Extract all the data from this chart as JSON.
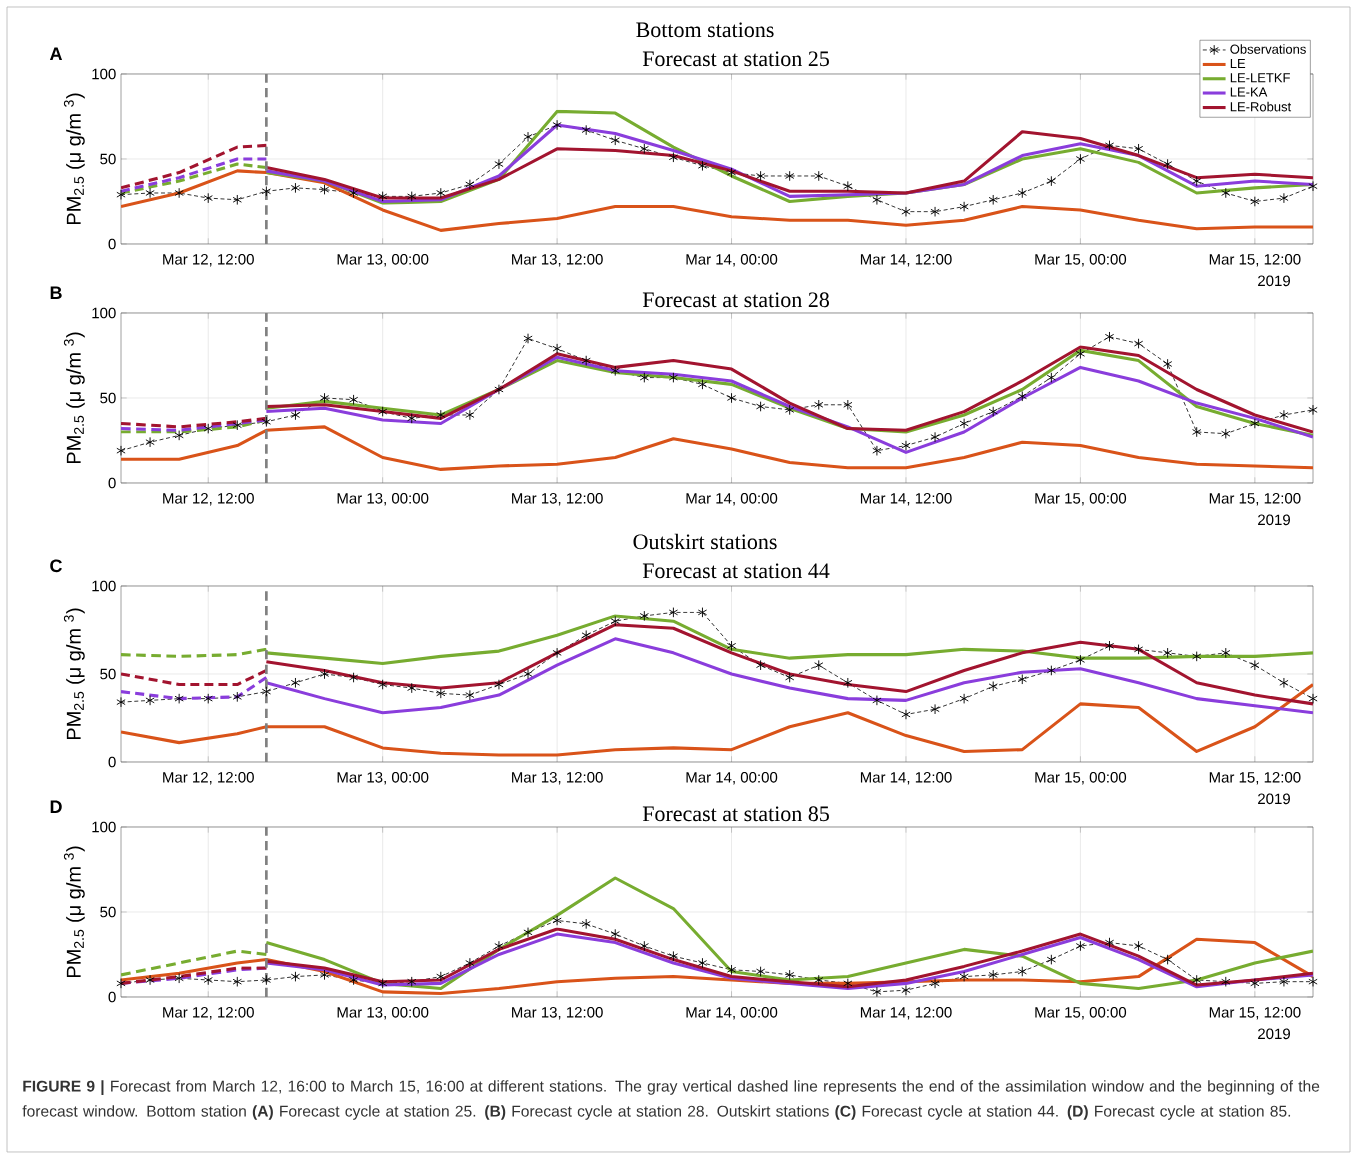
{
  "chart_data": [
    {
      "type": "line",
      "title": "Bottom stations",
      "subtitle": "Forecast at station 25",
      "ylabel": "PM$_{2.5}$  (μ g/m $^{3}$)",
      "x": [
        "2019-03-12T06:00",
        "2019-03-12T08:00",
        "2019-03-12T10:00",
        "2019-03-12T12:00",
        "2019-03-12T14:00",
        "2019-03-12T16:00",
        "2019-03-12T18:00",
        "2019-03-12T20:00",
        "2019-03-12T22:00",
        "2019-03-13T00:00",
        "2019-03-13T02:00",
        "2019-03-13T04:00",
        "2019-03-13T06:00",
        "2019-03-13T08:00",
        "2019-03-13T10:00",
        "2019-03-13T12:00",
        "2019-03-13T14:00",
        "2019-03-13T16:00",
        "2019-03-13T18:00",
        "2019-03-13T20:00",
        "2019-03-13T22:00",
        "2019-03-14T00:00",
        "2019-03-14T02:00",
        "2019-03-14T04:00",
        "2019-03-14T06:00",
        "2019-03-14T08:00",
        "2019-03-14T10:00",
        "2019-03-14T12:00",
        "2019-03-14T14:00",
        "2019-03-14T16:00",
        "2019-03-14T18:00",
        "2019-03-14T20:00",
        "2019-03-14T22:00",
        "2019-03-15T00:00",
        "2019-03-15T02:00",
        "2019-03-15T04:00",
        "2019-03-15T06:00",
        "2019-03-15T08:00",
        "2019-03-15T10:00",
        "2019-03-15T12:00",
        "2019-03-15T14:00",
        "2019-03-15T16:00"
      ],
      "xlim": [
        "2019-03-12T06:00",
        "2019-03-15T16:00"
      ],
      "xticks": [
        {
          "value": "2019-03-12T12:00",
          "label": "Mar 12, 12:00"
        },
        {
          "value": "2019-03-13T00:00",
          "label": "Mar 13, 00:00"
        },
        {
          "value": "2019-03-13T12:00",
          "label": "Mar 13, 12:00"
        },
        {
          "value": "2019-03-14T00:00",
          "label": "Mar 14, 00:00"
        },
        {
          "value": "2019-03-14T12:00",
          "label": "Mar 14, 12:00"
        },
        {
          "value": "2019-03-15T00:00",
          "label": "Mar 15, 00:00"
        },
        {
          "value": "2019-03-15T12:00",
          "label": "Mar 15, 12:00"
        }
      ],
      "ylim": [
        0,
        100
      ],
      "yticks": [
        0,
        50,
        100
      ],
      "grid": true,
      "legend": "top right",
      "ref_lines": [
        {
          "axis": "x",
          "value": "2019-03-12T16:00",
          "color": "#808080",
          "line_style": "dashed"
        }
      ],
      "annotations": [
        "A",
        "2019"
      ],
      "series": [
        {
          "name": "Observations",
          "color": "#000000",
          "marker": "cross",
          "line_style": "dashed",
          "values": [
            29,
            30,
            30,
            27,
            26,
            31,
            33,
            32,
            30,
            28,
            28,
            30,
            35,
            47,
            63,
            70,
            67,
            61,
            56,
            51,
            46,
            42,
            40,
            40,
            40,
            34,
            26,
            19,
            19,
            22,
            26,
            30,
            37,
            50,
            58,
            56,
            47,
            37,
            30,
            25,
            27,
            34
          ]
        },
        {
          "name": "LE",
          "color": "#d95319",
          "x": [
            "2019-03-12T06:00",
            "2019-03-12T10:00",
            "2019-03-12T14:00",
            "2019-03-12T16:00",
            "2019-03-12T20:00",
            "2019-03-13T00:00",
            "2019-03-13T04:00",
            "2019-03-13T08:00",
            "2019-03-13T12:00",
            "2019-03-13T16:00",
            "2019-03-13T20:00",
            "2019-03-14T00:00",
            "2019-03-14T04:00",
            "2019-03-14T08:00",
            "2019-03-14T12:00",
            "2019-03-14T16:00",
            "2019-03-14T20:00",
            "2019-03-15T00:00",
            "2019-03-15T04:00",
            "2019-03-15T08:00",
            "2019-03-15T12:00",
            "2019-03-15T16:00"
          ],
          "values": [
            22,
            30,
            43,
            42,
            36,
            20,
            8,
            12,
            15,
            22,
            22,
            16,
            14,
            14,
            11,
            14,
            22,
            20,
            14,
            9,
            10,
            10
          ]
        },
        {
          "name": "LE-LETKF",
          "color": "#77ac30",
          "x": [
            "2019-03-12T16:00",
            "2019-03-12T20:00",
            "2019-03-13T00:00",
            "2019-03-13T04:00",
            "2019-03-13T08:00",
            "2019-03-13T12:00",
            "2019-03-13T16:00",
            "2019-03-13T20:00",
            "2019-03-14T00:00",
            "2019-03-14T04:00",
            "2019-03-14T08:00",
            "2019-03-14T12:00",
            "2019-03-14T16:00",
            "2019-03-14T20:00",
            "2019-03-15T00:00",
            "2019-03-15T04:00",
            "2019-03-15T08:00",
            "2019-03-15T12:00",
            "2019-03-15T16:00"
          ],
          "values": [
            42,
            37,
            24,
            25,
            38,
            78,
            77,
            57,
            40,
            25,
            28,
            30,
            35,
            50,
            56,
            48,
            30,
            33,
            35
          ]
        },
        {
          "name": "LE-KA",
          "color": "#8a3ddc",
          "x": [
            "2019-03-12T16:00",
            "2019-03-12T20:00",
            "2019-03-13T00:00",
            "2019-03-13T04:00",
            "2019-03-13T08:00",
            "2019-03-13T12:00",
            "2019-03-13T16:00",
            "2019-03-13T20:00",
            "2019-03-14T00:00",
            "2019-03-14T04:00",
            "2019-03-14T08:00",
            "2019-03-14T12:00",
            "2019-03-14T16:00",
            "2019-03-14T20:00",
            "2019-03-15T00:00",
            "2019-03-15T04:00",
            "2019-03-15T08:00",
            "2019-03-15T12:00",
            "2019-03-15T16:00"
          ],
          "values": [
            43,
            37,
            25,
            26,
            40,
            70,
            65,
            55,
            44,
            28,
            29,
            30,
            35,
            52,
            59,
            52,
            34,
            37,
            35
          ]
        },
        {
          "name": "LE-Robust",
          "color": "#a2142f",
          "x": [
            "2019-03-12T16:00",
            "2019-03-12T20:00",
            "2019-03-13T00:00",
            "2019-03-13T04:00",
            "2019-03-13T08:00",
            "2019-03-13T12:00",
            "2019-03-13T16:00",
            "2019-03-13T20:00",
            "2019-03-14T00:00",
            "2019-03-14T04:00",
            "2019-03-14T08:00",
            "2019-03-14T12:00",
            "2019-03-14T16:00",
            "2019-03-14T20:00",
            "2019-03-15T00:00",
            "2019-03-15T04:00",
            "2019-03-15T08:00",
            "2019-03-15T12:00",
            "2019-03-15T16:00"
          ],
          "values": [
            45,
            38,
            27,
            27,
            38,
            56,
            55,
            52,
            43,
            31,
            31,
            30,
            37,
            66,
            62,
            52,
            39,
            41,
            39
          ]
        },
        {
          "color": "#77ac30",
          "line_style": "dashed",
          "x": [
            "2019-03-12T06:00",
            "2019-03-12T10:00",
            "2019-03-12T14:00",
            "2019-03-12T16:00"
          ],
          "values": [
            30,
            37,
            47,
            45
          ]
        },
        {
          "color": "#8a3ddc",
          "line_style": "dashed",
          "x": [
            "2019-03-12T06:00",
            "2019-03-12T10:00",
            "2019-03-12T14:00",
            "2019-03-12T16:00"
          ],
          "values": [
            31,
            39,
            50,
            50
          ]
        },
        {
          "color": "#a2142f",
          "line_style": "dashed",
          "x": [
            "2019-03-12T06:00",
            "2019-03-12T10:00",
            "2019-03-12T14:00",
            "2019-03-12T16:00"
          ],
          "values": [
            33,
            42,
            57,
            58
          ]
        }
      ]
    },
    {
      "type": "line",
      "title": "Forecast at station 28",
      "ylabel": "PM$_{2.5}$  (μ g/m $^{3}$)",
      "x": [
        "2019-03-12T06:00",
        "2019-03-12T08:00",
        "2019-03-12T10:00",
        "2019-03-12T12:00",
        "2019-03-12T14:00",
        "2019-03-12T16:00",
        "2019-03-12T18:00",
        "2019-03-12T20:00",
        "2019-03-12T22:00",
        "2019-03-13T00:00",
        "2019-03-13T02:00",
        "2019-03-13T04:00",
        "2019-03-13T06:00",
        "2019-03-13T08:00",
        "2019-03-13T10:00",
        "2019-03-13T12:00",
        "2019-03-13T14:00",
        "2019-03-13T16:00",
        "2019-03-13T18:00",
        "2019-03-13T20:00",
        "2019-03-13T22:00",
        "2019-03-14T00:00",
        "2019-03-14T02:00",
        "2019-03-14T04:00",
        "2019-03-14T06:00",
        "2019-03-14T08:00",
        "2019-03-14T10:00",
        "2019-03-14T12:00",
        "2019-03-14T14:00",
        "2019-03-14T16:00",
        "2019-03-14T18:00",
        "2019-03-14T20:00",
        "2019-03-14T22:00",
        "2019-03-15T00:00",
        "2019-03-15T02:00",
        "2019-03-15T04:00",
        "2019-03-15T06:00",
        "2019-03-15T08:00",
        "2019-03-15T10:00",
        "2019-03-15T12:00",
        "2019-03-15T14:00",
        "2019-03-15T16:00"
      ],
      "xlim": [
        "2019-03-12T06:00",
        "2019-03-15T16:00"
      ],
      "xticks": [
        {
          "value": "2019-03-12T12:00",
          "label": "Mar 12, 12:00"
        },
        {
          "value": "2019-03-13T00:00",
          "label": "Mar 13, 00:00"
        },
        {
          "value": "2019-03-13T12:00",
          "label": "Mar 13, 12:00"
        },
        {
          "value": "2019-03-14T00:00",
          "label": "Mar 14, 00:00"
        },
        {
          "value": "2019-03-14T12:00",
          "label": "Mar 14, 12:00"
        },
        {
          "value": "2019-03-15T00:00",
          "label": "Mar 15, 00:00"
        },
        {
          "value": "2019-03-15T12:00",
          "label": "Mar 15, 12:00"
        }
      ],
      "ylim": [
        0,
        100
      ],
      "yticks": [
        0,
        50,
        100
      ],
      "grid": true,
      "ref_lines": [
        {
          "axis": "x",
          "value": "2019-03-12T16:00",
          "color": "#808080",
          "line_style": "dashed"
        }
      ],
      "annotations": [
        "B",
        "2019"
      ],
      "series": [
        {
          "color": "#000000",
          "marker": "cross",
          "line_style": "dashed",
          "values": [
            19,
            24,
            28,
            32,
            34,
            36,
            40,
            50,
            49,
            42,
            38,
            40,
            40,
            55,
            85,
            79,
            72,
            66,
            62,
            62,
            58,
            50,
            45,
            43,
            46,
            46,
            19,
            22,
            27,
            35,
            42,
            51,
            62,
            76,
            86,
            82,
            70,
            30,
            29,
            35,
            40,
            43
          ]
        },
        {
          "color": "#d95319",
          "x": [
            "2019-03-12T06:00",
            "2019-03-12T10:00",
            "2019-03-12T14:00",
            "2019-03-12T16:00",
            "2019-03-12T20:00",
            "2019-03-13T00:00",
            "2019-03-13T04:00",
            "2019-03-13T08:00",
            "2019-03-13T12:00",
            "2019-03-13T16:00",
            "2019-03-13T20:00",
            "2019-03-14T00:00",
            "2019-03-14T04:00",
            "2019-03-14T08:00",
            "2019-03-14T12:00",
            "2019-03-14T16:00",
            "2019-03-14T20:00",
            "2019-03-15T00:00",
            "2019-03-15T04:00",
            "2019-03-15T08:00",
            "2019-03-15T12:00",
            "2019-03-15T16:00"
          ],
          "values": [
            14,
            14,
            22,
            31,
            33,
            15,
            8,
            10,
            11,
            15,
            26,
            20,
            12,
            9,
            9,
            15,
            24,
            22,
            15,
            11,
            10,
            9
          ]
        },
        {
          "color": "#77ac30",
          "x": [
            "2019-03-12T16:00",
            "2019-03-12T20:00",
            "2019-03-13T00:00",
            "2019-03-13T04:00",
            "2019-03-13T08:00",
            "2019-03-13T12:00",
            "2019-03-13T16:00",
            "2019-03-13T20:00",
            "2019-03-14T00:00",
            "2019-03-14T04:00",
            "2019-03-14T08:00",
            "2019-03-14T12:00",
            "2019-03-14T16:00",
            "2019-03-14T20:00",
            "2019-03-15T00:00",
            "2019-03-15T04:00",
            "2019-03-15T08:00",
            "2019-03-15T12:00",
            "2019-03-15T16:00"
          ],
          "values": [
            44,
            48,
            44,
            40,
            55,
            72,
            65,
            62,
            58,
            44,
            32,
            30,
            40,
            55,
            78,
            72,
            45,
            35,
            28
          ]
        },
        {
          "color": "#8a3ddc",
          "x": [
            "2019-03-12T16:00",
            "2019-03-12T20:00",
            "2019-03-13T00:00",
            "2019-03-13T04:00",
            "2019-03-13T08:00",
            "2019-03-13T12:00",
            "2019-03-13T16:00",
            "2019-03-13T20:00",
            "2019-03-14T00:00",
            "2019-03-14T04:00",
            "2019-03-14T08:00",
            "2019-03-14T12:00",
            "2019-03-14T16:00",
            "2019-03-14T20:00",
            "2019-03-15T00:00",
            "2019-03-15T04:00",
            "2019-03-15T08:00",
            "2019-03-15T12:00",
            "2019-03-15T16:00"
          ],
          "values": [
            42,
            44,
            37,
            35,
            55,
            74,
            66,
            64,
            60,
            45,
            33,
            18,
            30,
            50,
            68,
            60,
            47,
            38,
            27
          ]
        },
        {
          "color": "#a2142f",
          "x": [
            "2019-03-12T16:00",
            "2019-03-12T20:00",
            "2019-03-13T00:00",
            "2019-03-13T04:00",
            "2019-03-13T08:00",
            "2019-03-13T12:00",
            "2019-03-13T16:00",
            "2019-03-13T20:00",
            "2019-03-14T00:00",
            "2019-03-14T04:00",
            "2019-03-14T08:00",
            "2019-03-14T12:00",
            "2019-03-14T16:00",
            "2019-03-14T20:00",
            "2019-03-15T00:00",
            "2019-03-15T04:00",
            "2019-03-15T08:00",
            "2019-03-15T12:00",
            "2019-03-15T16:00"
          ],
          "values": [
            45,
            46,
            42,
            38,
            55,
            76,
            68,
            72,
            67,
            47,
            32,
            31,
            42,
            60,
            80,
            75,
            55,
            40,
            30
          ]
        },
        {
          "color": "#77ac30",
          "line_style": "dashed",
          "x": [
            "2019-03-12T06:00",
            "2019-03-12T10:00",
            "2019-03-12T14:00",
            "2019-03-12T16:00"
          ],
          "values": [
            30,
            30,
            33,
            37
          ]
        },
        {
          "color": "#8a3ddc",
          "line_style": "dashed",
          "x": [
            "2019-03-12T06:00",
            "2019-03-12T10:00",
            "2019-03-12T14:00",
            "2019-03-12T16:00"
          ],
          "values": [
            32,
            31,
            35,
            37
          ]
        },
        {
          "color": "#a2142f",
          "line_style": "dashed",
          "x": [
            "2019-03-12T06:00",
            "2019-03-12T10:00",
            "2019-03-12T14:00",
            "2019-03-12T16:00"
          ],
          "values": [
            35,
            33,
            36,
            38
          ]
        }
      ]
    },
    {
      "type": "line",
      "title": "Outskirt stations",
      "subtitle": "Forecast at station 44",
      "ylabel": "PM$_{2.5}$  (μ g/m $^{3}$)",
      "x": [
        "2019-03-12T06:00",
        "2019-03-12T08:00",
        "2019-03-12T10:00",
        "2019-03-12T12:00",
        "2019-03-12T14:00",
        "2019-03-12T16:00",
        "2019-03-12T18:00",
        "2019-03-12T20:00",
        "2019-03-12T22:00",
        "2019-03-13T00:00",
        "2019-03-13T02:00",
        "2019-03-13T04:00",
        "2019-03-13T06:00",
        "2019-03-13T08:00",
        "2019-03-13T10:00",
        "2019-03-13T12:00",
        "2019-03-13T14:00",
        "2019-03-13T16:00",
        "2019-03-13T18:00",
        "2019-03-13T20:00",
        "2019-03-13T22:00",
        "2019-03-14T00:00",
        "2019-03-14T02:00",
        "2019-03-14T04:00",
        "2019-03-14T06:00",
        "2019-03-14T08:00",
        "2019-03-14T10:00",
        "2019-03-14T12:00",
        "2019-03-14T14:00",
        "2019-03-14T16:00",
        "2019-03-14T18:00",
        "2019-03-14T20:00",
        "2019-03-14T22:00",
        "2019-03-15T00:00",
        "2019-03-15T02:00",
        "2019-03-15T04:00",
        "2019-03-15T06:00",
        "2019-03-15T08:00",
        "2019-03-15T10:00",
        "2019-03-15T12:00",
        "2019-03-15T14:00",
        "2019-03-15T16:00"
      ],
      "xlim": [
        "2019-03-12T06:00",
        "2019-03-15T16:00"
      ],
      "xticks": [
        {
          "value": "2019-03-12T12:00",
          "label": "Mar 12, 12:00"
        },
        {
          "value": "2019-03-13T00:00",
          "label": "Mar 13, 00:00"
        },
        {
          "value": "2019-03-13T12:00",
          "label": "Mar 13, 12:00"
        },
        {
          "value": "2019-03-14T00:00",
          "label": "Mar 14, 00:00"
        },
        {
          "value": "2019-03-14T12:00",
          "label": "Mar 14, 12:00"
        },
        {
          "value": "2019-03-15T00:00",
          "label": "Mar 15, 00:00"
        },
        {
          "value": "2019-03-15T12:00",
          "label": "Mar 15, 12:00"
        }
      ],
      "ylim": [
        0,
        100
      ],
      "yticks": [
        0,
        50,
        100
      ],
      "grid": true,
      "ref_lines": [
        {
          "axis": "x",
          "value": "2019-03-12T16:00",
          "color": "#808080",
          "line_style": "dashed"
        }
      ],
      "annotations": [
        "C",
        "2019"
      ],
      "series": [
        {
          "color": "#000000",
          "marker": "cross",
          "line_style": "dashed",
          "values": [
            34,
            35,
            36,
            36,
            37,
            40,
            45,
            50,
            48,
            44,
            42,
            39,
            38,
            44,
            50,
            62,
            72,
            80,
            83,
            85,
            85,
            66,
            55,
            48,
            55,
            45,
            35,
            27,
            30,
            36,
            43,
            47,
            52,
            58,
            66,
            64,
            62,
            60,
            62,
            55,
            45,
            36
          ]
        },
        {
          "color": "#d95319",
          "x": [
            "2019-03-12T06:00",
            "2019-03-12T10:00",
            "2019-03-12T14:00",
            "2019-03-12T16:00",
            "2019-03-12T20:00",
            "2019-03-13T00:00",
            "2019-03-13T04:00",
            "2019-03-13T08:00",
            "2019-03-13T12:00",
            "2019-03-13T16:00",
            "2019-03-13T20:00",
            "2019-03-14T00:00",
            "2019-03-14T04:00",
            "2019-03-14T08:00",
            "2019-03-14T12:00",
            "2019-03-14T16:00",
            "2019-03-14T20:00",
            "2019-03-15T00:00",
            "2019-03-15T04:00",
            "2019-03-15T08:00",
            "2019-03-15T12:00",
            "2019-03-15T16:00"
          ],
          "values": [
            17,
            11,
            16,
            20,
            20,
            8,
            5,
            4,
            4,
            7,
            8,
            7,
            20,
            28,
            15,
            6,
            7,
            33,
            31,
            6,
            20,
            44
          ]
        },
        {
          "color": "#77ac30",
          "x": [
            "2019-03-12T16:00",
            "2019-03-12T20:00",
            "2019-03-13T00:00",
            "2019-03-13T04:00",
            "2019-03-13T08:00",
            "2019-03-13T12:00",
            "2019-03-13T16:00",
            "2019-03-13T20:00",
            "2019-03-14T00:00",
            "2019-03-14T04:00",
            "2019-03-14T08:00",
            "2019-03-14T12:00",
            "2019-03-14T16:00",
            "2019-03-14T20:00",
            "2019-03-15T00:00",
            "2019-03-15T04:00",
            "2019-03-15T08:00",
            "2019-03-15T12:00",
            "2019-03-15T16:00"
          ],
          "values": [
            62,
            59,
            56,
            60,
            63,
            72,
            83,
            80,
            64,
            59,
            61,
            61,
            64,
            63,
            59,
            59,
            60,
            60,
            62
          ]
        },
        {
          "color": "#8a3ddc",
          "x": [
            "2019-03-12T16:00",
            "2019-03-12T20:00",
            "2019-03-13T00:00",
            "2019-03-13T04:00",
            "2019-03-13T08:00",
            "2019-03-13T12:00",
            "2019-03-13T16:00",
            "2019-03-13T20:00",
            "2019-03-14T00:00",
            "2019-03-14T04:00",
            "2019-03-14T08:00",
            "2019-03-14T12:00",
            "2019-03-14T16:00",
            "2019-03-14T20:00",
            "2019-03-15T00:00",
            "2019-03-15T04:00",
            "2019-03-15T08:00",
            "2019-03-15T12:00",
            "2019-03-15T16:00"
          ],
          "values": [
            45,
            36,
            28,
            31,
            38,
            55,
            70,
            62,
            50,
            42,
            36,
            35,
            45,
            51,
            53,
            45,
            36,
            32,
            28
          ]
        },
        {
          "color": "#a2142f",
          "x": [
            "2019-03-12T16:00",
            "2019-03-12T20:00",
            "2019-03-13T00:00",
            "2019-03-13T04:00",
            "2019-03-13T08:00",
            "2019-03-13T12:00",
            "2019-03-13T16:00",
            "2019-03-13T20:00",
            "2019-03-14T00:00",
            "2019-03-14T04:00",
            "2019-03-14T08:00",
            "2019-03-14T12:00",
            "2019-03-14T16:00",
            "2019-03-14T20:00",
            "2019-03-15T00:00",
            "2019-03-15T04:00",
            "2019-03-15T08:00",
            "2019-03-15T12:00",
            "2019-03-15T16:00"
          ],
          "values": [
            57,
            52,
            45,
            42,
            45,
            62,
            78,
            76,
            62,
            50,
            44,
            40,
            52,
            62,
            68,
            64,
            45,
            38,
            33
          ]
        },
        {
          "color": "#77ac30",
          "line_style": "dashed",
          "x": [
            "2019-03-12T06:00",
            "2019-03-12T10:00",
            "2019-03-12T14:00",
            "2019-03-12T16:00"
          ],
          "values": [
            61,
            60,
            61,
            64
          ]
        },
        {
          "color": "#8a3ddc",
          "line_style": "dashed",
          "x": [
            "2019-03-12T06:00",
            "2019-03-12T10:00",
            "2019-03-12T14:00",
            "2019-03-12T16:00"
          ],
          "values": [
            40,
            36,
            37,
            48
          ]
        },
        {
          "color": "#a2142f",
          "line_style": "dashed",
          "x": [
            "2019-03-12T06:00",
            "2019-03-12T10:00",
            "2019-03-12T14:00",
            "2019-03-12T16:00"
          ],
          "values": [
            50,
            44,
            44,
            52
          ]
        }
      ]
    },
    {
      "type": "line",
      "title": "Forecast at station 85",
      "ylabel": "PM$_{2.5}$  (μ g/m $^{3}$)",
      "x": [
        "2019-03-12T06:00",
        "2019-03-12T08:00",
        "2019-03-12T10:00",
        "2019-03-12T12:00",
        "2019-03-12T14:00",
        "2019-03-12T16:00",
        "2019-03-12T18:00",
        "2019-03-12T20:00",
        "2019-03-12T22:00",
        "2019-03-13T00:00",
        "2019-03-13T02:00",
        "2019-03-13T04:00",
        "2019-03-13T06:00",
        "2019-03-13T08:00",
        "2019-03-13T10:00",
        "2019-03-13T12:00",
        "2019-03-13T14:00",
        "2019-03-13T16:00",
        "2019-03-13T18:00",
        "2019-03-13T20:00",
        "2019-03-13T22:00",
        "2019-03-14T00:00",
        "2019-03-14T02:00",
        "2019-03-14T04:00",
        "2019-03-14T06:00",
        "2019-03-14T08:00",
        "2019-03-14T10:00",
        "2019-03-14T12:00",
        "2019-03-14T14:00",
        "2019-03-14T16:00",
        "2019-03-14T18:00",
        "2019-03-14T20:00",
        "2019-03-14T22:00",
        "2019-03-15T00:00",
        "2019-03-15T02:00",
        "2019-03-15T04:00",
        "2019-03-15T06:00",
        "2019-03-15T08:00",
        "2019-03-15T10:00",
        "2019-03-15T12:00",
        "2019-03-15T14:00",
        "2019-03-15T16:00"
      ],
      "xlim": [
        "2019-03-12T06:00",
        "2019-03-15T16:00"
      ],
      "xticks": [
        {
          "value": "2019-03-12T12:00",
          "label": "Mar 12, 12:00"
        },
        {
          "value": "2019-03-13T00:00",
          "label": "Mar 13, 00:00"
        },
        {
          "value": "2019-03-13T12:00",
          "label": "Mar 13, 12:00"
        },
        {
          "value": "2019-03-14T00:00",
          "label": "Mar 14, 00:00"
        },
        {
          "value": "2019-03-14T12:00",
          "label": "Mar 14, 12:00"
        },
        {
          "value": "2019-03-15T00:00",
          "label": "Mar 15, 00:00"
        },
        {
          "value": "2019-03-15T12:00",
          "label": "Mar 15, 12:00"
        }
      ],
      "ylim": [
        0,
        100
      ],
      "yticks": [
        0,
        50,
        100
      ],
      "grid": true,
      "ref_lines": [
        {
          "axis": "x",
          "value": "2019-03-12T16:00",
          "color": "#808080",
          "line_style": "dashed"
        }
      ],
      "annotations": [
        "D",
        "2019",
        "**FIGURE 9 |** Forecast from March 12, 16:00 to March 15, 16:00 at different stations. The gray vertical dashed line represents the end of the assimilation window and the beginning of the forecast window. Bottom station **(A)** Forecast cycle at station 25. **(B)** Forecast cycle at station 28. Outskirt stations **(C)** Forecast cycle at station 44. **(D)** Forecast cycle at station 85."
      ],
      "series": [
        {
          "color": "#000000",
          "marker": "cross",
          "line_style": "dashed",
          "values": [
            8,
            10,
            11,
            10,
            9,
            10,
            12,
            13,
            10,
            8,
            9,
            12,
            20,
            30,
            38,
            45,
            43,
            37,
            30,
            24,
            20,
            16,
            15,
            13,
            10,
            8,
            3,
            4,
            8,
            12,
            13,
            15,
            22,
            30,
            32,
            30,
            22,
            10,
            9,
            8,
            9,
            9
          ]
        },
        {
          "color": "#d95319",
          "x": [
            "2019-03-12T06:00",
            "2019-03-12T10:00",
            "2019-03-12T14:00",
            "2019-03-12T16:00",
            "2019-03-12T20:00",
            "2019-03-13T00:00",
            "2019-03-13T04:00",
            "2019-03-13T08:00",
            "2019-03-13T12:00",
            "2019-03-13T16:00",
            "2019-03-13T20:00",
            "2019-03-14T00:00",
            "2019-03-14T04:00",
            "2019-03-14T08:00",
            "2019-03-14T12:00",
            "2019-03-14T16:00",
            "2019-03-14T20:00",
            "2019-03-15T00:00",
            "2019-03-15T04:00",
            "2019-03-15T08:00",
            "2019-03-15T12:00",
            "2019-03-15T16:00"
          ],
          "values": [
            10,
            14,
            20,
            22,
            15,
            3,
            2,
            5,
            9,
            11,
            12,
            10,
            8,
            8,
            9,
            10,
            10,
            9,
            12,
            34,
            32,
            12
          ]
        },
        {
          "color": "#77ac30",
          "x": [
            "2019-03-12T16:00",
            "2019-03-12T20:00",
            "2019-03-13T00:00",
            "2019-03-13T04:00",
            "2019-03-13T08:00",
            "2019-03-13T12:00",
            "2019-03-13T16:00",
            "2019-03-13T20:00",
            "2019-03-14T00:00",
            "2019-03-14T04:00",
            "2019-03-14T08:00",
            "2019-03-14T12:00",
            "2019-03-14T16:00",
            "2019-03-14T20:00",
            "2019-03-15T00:00",
            "2019-03-15T04:00",
            "2019-03-15T08:00",
            "2019-03-15T12:00",
            "2019-03-15T16:00"
          ],
          "values": [
            32,
            22,
            8,
            5,
            28,
            48,
            70,
            52,
            15,
            10,
            12,
            20,
            28,
            24,
            8,
            5,
            10,
            20,
            27
          ]
        },
        {
          "color": "#8a3ddc",
          "x": [
            "2019-03-12T16:00",
            "2019-03-12T20:00",
            "2019-03-13T00:00",
            "2019-03-13T04:00",
            "2019-03-13T08:00",
            "2019-03-13T12:00",
            "2019-03-13T16:00",
            "2019-03-13T20:00",
            "2019-03-14T00:00",
            "2019-03-14T04:00",
            "2019-03-14T08:00",
            "2019-03-14T12:00",
            "2019-03-14T16:00",
            "2019-03-14T20:00",
            "2019-03-15T00:00",
            "2019-03-15T04:00",
            "2019-03-15T08:00",
            "2019-03-15T12:00",
            "2019-03-15T16:00"
          ],
          "values": [
            20,
            16,
            7,
            8,
            25,
            37,
            32,
            20,
            11,
            8,
            5,
            8,
            15,
            25,
            35,
            22,
            6,
            10,
            13
          ]
        },
        {
          "color": "#a2142f",
          "x": [
            "2019-03-12T16:00",
            "2019-03-12T20:00",
            "2019-03-13T00:00",
            "2019-03-13T04:00",
            "2019-03-13T08:00",
            "2019-03-13T12:00",
            "2019-03-13T16:00",
            "2019-03-13T20:00",
            "2019-03-14T00:00",
            "2019-03-14T04:00",
            "2019-03-14T08:00",
            "2019-03-14T12:00",
            "2019-03-14T16:00",
            "2019-03-14T20:00",
            "2019-03-15T00:00",
            "2019-03-15T04:00",
            "2019-03-15T08:00",
            "2019-03-15T12:00",
            "2019-03-15T16:00"
          ],
          "values": [
            21,
            17,
            9,
            10,
            28,
            40,
            34,
            22,
            12,
            9,
            6,
            10,
            18,
            27,
            37,
            24,
            7,
            10,
            14
          ]
        },
        {
          "color": "#77ac30",
          "line_style": "dashed",
          "x": [
            "2019-03-12T06:00",
            "2019-03-12T10:00",
            "2019-03-12T14:00",
            "2019-03-12T16:00"
          ],
          "values": [
            13,
            20,
            27,
            25
          ]
        },
        {
          "color": "#8a3ddc",
          "line_style": "dashed",
          "x": [
            "2019-03-12T06:00",
            "2019-03-12T10:00",
            "2019-03-12T14:00",
            "2019-03-12T16:00"
          ],
          "values": [
            8,
            11,
            16,
            17
          ]
        },
        {
          "color": "#a2142f",
          "line_style": "dashed",
          "x": [
            "2019-03-12T06:00",
            "2019-03-12T10:00",
            "2019-03-12T14:00",
            "2019-03-12T16:00"
          ],
          "values": [
            8,
            12,
            17,
            17
          ]
        }
      ]
    }
  ]
}
